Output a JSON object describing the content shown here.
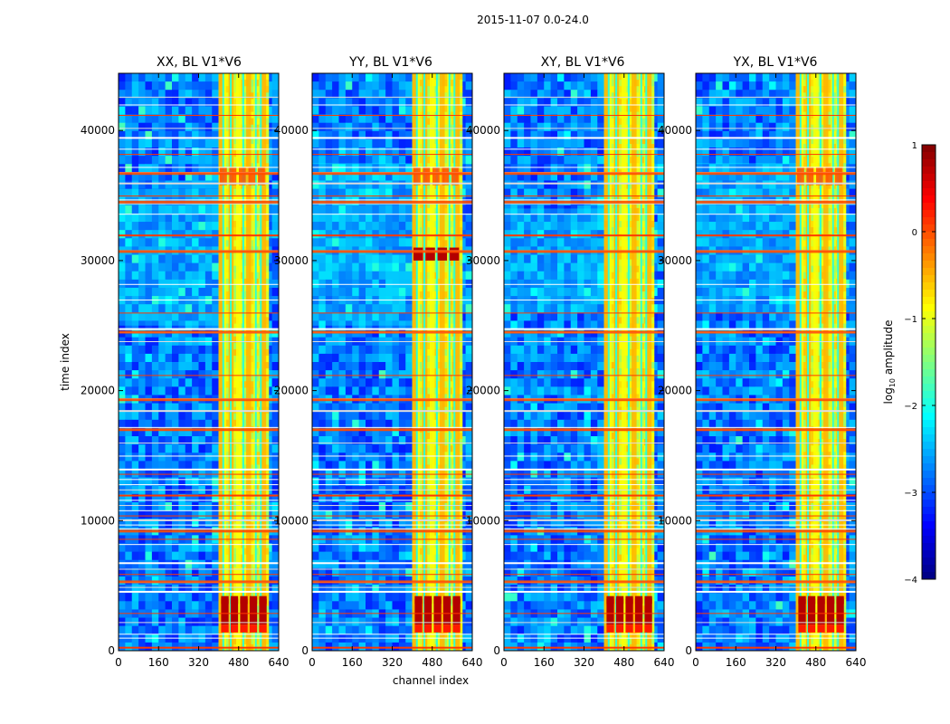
{
  "figure_title": "2015-11-07 0.0-24.0",
  "chart_data": {
    "type": "heatmap",
    "suptitle": "2015-11-07 0.0-24.0",
    "xlabel": "channel index",
    "ylabel": "time index",
    "xlim": [
      0,
      640
    ],
    "ylim": [
      0,
      44400
    ],
    "x_ticks": [
      0,
      160,
      320,
      480,
      640
    ],
    "y_ticks": [
      0,
      10000,
      20000,
      30000,
      40000
    ],
    "panels": [
      {
        "title": "XX, BL V1*V6",
        "red_blocks": [
          [
            4200,
            1400,
            3600
          ],
          [
            4200,
            600,
            800
          ]
        ],
        "hot_band": [
          25000,
          35500
        ]
      },
      {
        "title": "YY, BL V1*V6",
        "red_blocks": [
          [
            4200,
            1600,
            3600
          ],
          [
            30000,
            31000,
            2
          ],
          [
            36000,
            37000,
            1
          ]
        ],
        "hot_band": [
          25000,
          37500
        ]
      },
      {
        "title": "XY, BL V1*V6",
        "red_blocks": [
          [
            4200,
            1400,
            3600
          ]
        ],
        "hot_band": [
          26000,
          34000
        ]
      },
      {
        "title": "YX, BL V1*V6",
        "red_blocks": [
          [
            4200,
            1600,
            3600
          ],
          [
            36000,
            37000,
            1
          ]
        ],
        "hot_band": [
          26000,
          37500
        ]
      }
    ],
    "rfi_band_channels": [
      [
        400,
        420
      ],
      [
        420,
        430
      ],
      [
        440,
        460
      ],
      [
        470,
        490
      ],
      [
        510,
        530
      ],
      [
        540,
        550
      ],
      [
        570,
        590
      ]
    ],
    "flagged_rows": [
      300,
      1000,
      1300,
      2200,
      2900,
      4600,
      4900,
      5300,
      5900,
      6300,
      6800,
      8200,
      8600,
      9400,
      9700,
      10100,
      10400,
      10800,
      11200,
      11600,
      12000,
      12400,
      12800,
      13200,
      13600,
      14000,
      15000,
      16000,
      17000,
      17200,
      18500,
      19400,
      21200,
      23800,
      24500,
      24800,
      26000,
      27000,
      28200,
      30800,
      32000,
      33600,
      34400,
      34700,
      35000,
      36000,
      36800,
      37200,
      38200,
      38600,
      39500,
      40200,
      41200,
      42000,
      42600
    ],
    "colorbar": {
      "label": "log10 amplitude",
      "label_base": "log",
      "label_sub": "10",
      "label_rest": " amplitude",
      "range": [
        -4,
        1
      ],
      "ticks": [
        "1",
        "0",
        "−1",
        "−2",
        "−3",
        "−4"
      ],
      "tick_values": [
        1,
        0,
        -1,
        -2,
        -3,
        -4
      ],
      "colormap": "jet"
    }
  }
}
